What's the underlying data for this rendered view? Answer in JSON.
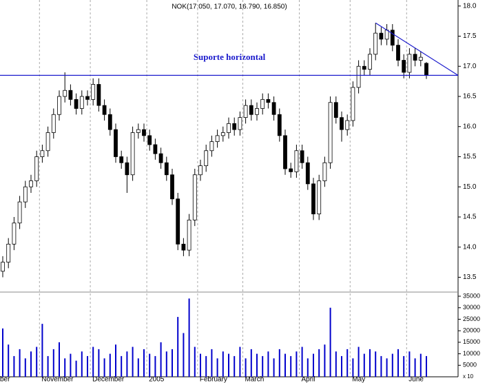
{
  "chart_data": {
    "type": "candlestick",
    "title": "NOK(17.050, 17.070, 16.790, 16.850)",
    "annotation": "Suporte horizontal",
    "support_level": 16.85,
    "trendline": {
      "start": 17.72,
      "end": 16.85
    },
    "volume_unit_label": "x 10",
    "categories": [
      "ber",
      null,
      null,
      null,
      null,
      null,
      null,
      "November",
      null,
      null,
      null,
      null,
      null,
      null,
      null,
      null,
      "December",
      null,
      null,
      null,
      null,
      null,
      null,
      null,
      null,
      null,
      "2005",
      null,
      null,
      null,
      null,
      null,
      null,
      null,
      null,
      "February",
      null,
      null,
      null,
      null,
      null,
      null,
      null,
      "March",
      null,
      null,
      null,
      null,
      null,
      null,
      null,
      null,
      null,
      "April",
      null,
      null,
      null,
      null,
      null,
      null,
      null,
      null,
      "May",
      null,
      null,
      null,
      null,
      null,
      null,
      null,
      null,
      null,
      "June",
      null,
      null,
      null
    ],
    "open": [
      13.6,
      13.75,
      14.05,
      14.4,
      14.75,
      15.0,
      15.1,
      15.5,
      15.6,
      15.9,
      16.2,
      16.5,
      16.6,
      16.45,
      16.3,
      16.5,
      16.45,
      16.7,
      16.35,
      16.2,
      15.95,
      15.5,
      15.4,
      15.2,
      15.9,
      15.95,
      15.85,
      15.7,
      15.55,
      15.4,
      15.2,
      14.8,
      14.05,
      13.95,
      14.45,
      15.2,
      15.35,
      15.6,
      15.75,
      15.85,
      15.9,
      16.05,
      15.95,
      16.15,
      16.35,
      16.2,
      16.3,
      16.45,
      16.4,
      16.2,
      15.85,
      15.3,
      15.25,
      15.6,
      15.4,
      15.05,
      14.55,
      15.1,
      15.4,
      16.4,
      16.15,
      15.95,
      16.1,
      16.65,
      17.0,
      16.95,
      17.2,
      17.55,
      17.45,
      17.6,
      17.35,
      17.1,
      16.9,
      17.2,
      17.1,
      17.05
    ],
    "high": [
      13.85,
      14.15,
      14.5,
      14.85,
      15.1,
      15.2,
      15.6,
      15.7,
      16.0,
      16.3,
      16.6,
      16.9,
      16.7,
      16.55,
      16.6,
      16.6,
      16.8,
      16.8,
      16.45,
      16.3,
      16.05,
      15.6,
      15.5,
      16.0,
      16.05,
      16.05,
      15.95,
      15.8,
      15.65,
      15.5,
      15.3,
      14.9,
      14.15,
      14.55,
      15.3,
      15.45,
      15.7,
      15.85,
      15.95,
      16.0,
      16.15,
      16.15,
      16.25,
      16.45,
      16.45,
      16.4,
      16.55,
      16.55,
      16.5,
      16.3,
      15.95,
      15.4,
      15.7,
      15.7,
      15.5,
      15.15,
      15.2,
      15.5,
      16.5,
      16.5,
      16.25,
      16.2,
      16.75,
      17.1,
      17.1,
      17.3,
      17.72,
      17.65,
      17.7,
      17.7,
      17.45,
      17.2,
      17.3,
      17.3,
      17.25,
      17.07
    ],
    "low": [
      13.5,
      13.65,
      13.95,
      14.3,
      14.65,
      14.9,
      15.0,
      15.4,
      15.5,
      15.8,
      16.1,
      16.4,
      16.35,
      16.2,
      16.2,
      16.35,
      16.35,
      16.25,
      16.1,
      15.85,
      15.4,
      15.3,
      14.9,
      15.1,
      15.8,
      15.75,
      15.6,
      15.45,
      15.3,
      15.1,
      14.7,
      13.95,
      13.85,
      13.85,
      14.35,
      15.1,
      15.25,
      15.5,
      15.65,
      15.75,
      15.8,
      15.85,
      15.85,
      16.05,
      16.1,
      16.1,
      16.2,
      16.3,
      16.1,
      15.75,
      15.2,
      15.15,
      15.15,
      15.3,
      14.95,
      14.45,
      14.45,
      15.0,
      15.3,
      16.05,
      15.75,
      15.85,
      16.0,
      16.55,
      16.85,
      16.85,
      17.1,
      17.35,
      17.35,
      17.25,
      17.0,
      16.8,
      16.8,
      17.0,
      17.0,
      16.79
    ],
    "close": [
      13.75,
      14.05,
      14.4,
      14.75,
      15.0,
      15.1,
      15.5,
      15.6,
      15.9,
      16.2,
      16.5,
      16.6,
      16.45,
      16.3,
      16.5,
      16.45,
      16.7,
      16.35,
      16.2,
      15.95,
      15.5,
      15.4,
      15.2,
      15.9,
      15.95,
      15.85,
      15.7,
      15.55,
      15.4,
      15.2,
      14.8,
      14.05,
      13.95,
      14.45,
      15.2,
      15.35,
      15.6,
      15.75,
      15.85,
      15.9,
      16.05,
      15.95,
      16.15,
      16.35,
      16.2,
      16.3,
      16.45,
      16.4,
      16.2,
      15.85,
      15.3,
      15.25,
      15.6,
      15.4,
      15.05,
      14.55,
      15.1,
      15.4,
      16.4,
      16.15,
      15.95,
      16.1,
      16.65,
      17.0,
      16.95,
      17.2,
      17.55,
      17.45,
      17.6,
      17.35,
      17.1,
      16.9,
      17.2,
      17.1,
      17.15,
      16.85
    ],
    "volume": [
      21000,
      14000,
      9000,
      12000,
      8000,
      11000,
      13000,
      23000,
      9000,
      12000,
      15000,
      8000,
      10000,
      7000,
      11000,
      9000,
      13000,
      12000,
      8000,
      10000,
      14000,
      9000,
      11000,
      13000,
      8000,
      12000,
      10000,
      9000,
      15000,
      11000,
      12000,
      26000,
      19000,
      34000,
      13000,
      10000,
      9000,
      12000,
      8000,
      11000,
      10000,
      9000,
      13000,
      8000,
      12000,
      10000,
      9000,
      11000,
      8000,
      12000,
      10000,
      9000,
      11000,
      13000,
      8000,
      10000,
      12000,
      14000,
      30000,
      11000,
      9000,
      12000,
      8000,
      13000,
      10000,
      12000,
      11000,
      9000,
      8000,
      10000,
      12000,
      9000,
      11000,
      8000,
      10000,
      9000
    ],
    "up_color": "#ffffff",
    "down_color": "#000000",
    "volume_color": "#0000cc",
    "line_color": "#1a1acc",
    "ylim": [
      13.3,
      18.1
    ],
    "yticks": [
      13.5,
      {
        "value": 14,
        "label": "14.0"
      },
      14.5,
      {
        "value": 15,
        "label": "15.0"
      },
      15.5,
      {
        "value": 16,
        "label": "16.0"
      },
      16.5,
      {
        "value": 17,
        "label": "17.0"
      },
      17.5,
      {
        "value": 18,
        "label": "18.0"
      }
    ],
    "volume_ylim": [
      0,
      36500
    ],
    "volume_ticks": [
      5000,
      10000,
      15000,
      20000,
      25000,
      30000,
      35000
    ]
  }
}
